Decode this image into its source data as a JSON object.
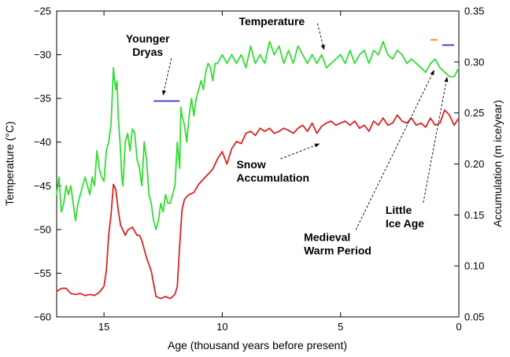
{
  "chart_data": {
    "type": "line",
    "title": "",
    "xlabel": "Age (thousand years before present)",
    "ylabel_left": "Temperature (°C)",
    "ylabel_right": "Accumulation (m ice/year)",
    "xlim": [
      17,
      0
    ],
    "ylim_left": [
      -60,
      -25
    ],
    "ylim_right": [
      0.05,
      0.35
    ],
    "x_ticks": [
      15,
      10,
      5,
      0
    ],
    "y_left_ticks": [
      -60,
      -55,
      -50,
      -45,
      -40,
      -35,
      -30,
      -25
    ],
    "y_right_ticks": [
      0.05,
      0.1,
      0.15,
      0.2,
      0.25,
      0.3,
      0.35
    ],
    "grid": false,
    "series": [
      {
        "name": "Temperature",
        "axis": "left",
        "color": "#33dd33",
        "x": [
          17.0,
          16.9,
          16.8,
          16.7,
          16.6,
          16.5,
          16.4,
          16.3,
          16.2,
          16.1,
          16.0,
          15.9,
          15.8,
          15.7,
          15.6,
          15.5,
          15.4,
          15.3,
          15.2,
          15.1,
          15.0,
          14.9,
          14.8,
          14.7,
          14.6,
          14.55,
          14.5,
          14.45,
          14.4,
          14.3,
          14.25,
          14.2,
          14.1,
          14.0,
          13.9,
          13.8,
          13.7,
          13.6,
          13.5,
          13.4,
          13.3,
          13.2,
          13.1,
          13.0,
          12.9,
          12.8,
          12.7,
          12.6,
          12.5,
          12.4,
          12.3,
          12.2,
          12.1,
          12.0,
          11.9,
          11.8,
          11.75,
          11.7,
          11.6,
          11.5,
          11.4,
          11.3,
          11.2,
          11.1,
          11.0,
          10.9,
          10.8,
          10.7,
          10.6,
          10.5,
          10.4,
          10.3,
          10.2,
          10.1,
          10.0,
          9.8,
          9.6,
          9.4,
          9.2,
          9.0,
          8.8,
          8.6,
          8.4,
          8.2,
          8.0,
          7.8,
          7.6,
          7.4,
          7.2,
          7.0,
          6.8,
          6.6,
          6.4,
          6.2,
          6.0,
          5.8,
          5.6,
          5.4,
          5.2,
          5.0,
          4.8,
          4.6,
          4.4,
          4.2,
          4.0,
          3.8,
          3.6,
          3.4,
          3.2,
          3.0,
          2.8,
          2.6,
          2.4,
          2.2,
          2.0,
          1.8,
          1.6,
          1.4,
          1.2,
          1.0,
          0.8,
          0.6,
          0.4,
          0.2,
          0.1,
          0.0
        ],
        "values": [
          -46,
          -44,
          -48,
          -47,
          -45,
          -46,
          -45,
          -47,
          -49,
          -47,
          -46,
          -45,
          -44,
          -45,
          -46,
          -44,
          -45,
          -41,
          -43,
          -44,
          -44.5,
          -41,
          -40,
          -38,
          -31.5,
          -33,
          -34,
          -33,
          -37,
          -41,
          -44,
          -45,
          -40,
          -39,
          -41,
          -38.5,
          -39,
          -42,
          -43,
          -45,
          -40,
          -42,
          -46,
          -47,
          -49,
          -50,
          -49,
          -47,
          -48,
          -46,
          -47,
          -47,
          -46,
          -45,
          -40,
          -43,
          -36,
          -37,
          -38,
          -40,
          -37,
          -35,
          -37,
          -35,
          -34,
          -33,
          -34,
          -32,
          -31,
          -31.5,
          -33,
          -31,
          -31,
          -30.5,
          -30,
          -31,
          -30,
          -31,
          -30,
          -31.5,
          -29,
          -31,
          -30,
          -31,
          -28.5,
          -30,
          -29,
          -31,
          -29.5,
          -31,
          -29,
          -30,
          -31,
          -30,
          -31,
          -30,
          -31.5,
          -31,
          -30.5,
          -30,
          -31,
          -29.5,
          -31,
          -30,
          -29.5,
          -31,
          -29.5,
          -30,
          -28.5,
          -30,
          -30.5,
          -29.5,
          -30,
          -31,
          -30.5,
          -31,
          -31.5,
          -32,
          -31,
          -30.5,
          -31.5,
          -32,
          -32.5,
          -32.5,
          -32,
          -31.5
        ]
      },
      {
        "name": "Snow Accumulation",
        "axis": "right",
        "color": "#dd2222",
        "x": [
          17.0,
          16.8,
          16.6,
          16.4,
          16.2,
          16.0,
          15.8,
          15.6,
          15.4,
          15.2,
          15.0,
          14.9,
          14.8,
          14.7,
          14.6,
          14.5,
          14.4,
          14.3,
          14.2,
          14.1,
          14.0,
          13.8,
          13.6,
          13.5,
          13.4,
          13.2,
          13.0,
          12.8,
          12.6,
          12.4,
          12.2,
          12.0,
          11.9,
          11.8,
          11.7,
          11.6,
          11.5,
          11.4,
          11.2,
          11.0,
          10.8,
          10.6,
          10.4,
          10.2,
          10.0,
          9.8,
          9.6,
          9.4,
          9.2,
          9.0,
          8.8,
          8.6,
          8.4,
          8.2,
          8.0,
          7.8,
          7.6,
          7.4,
          7.2,
          7.0,
          6.8,
          6.6,
          6.4,
          6.2,
          6.0,
          5.8,
          5.6,
          5.4,
          5.2,
          5.0,
          4.8,
          4.6,
          4.4,
          4.2,
          4.0,
          3.8,
          3.6,
          3.4,
          3.2,
          3.0,
          2.8,
          2.6,
          2.4,
          2.2,
          2.0,
          1.8,
          1.6,
          1.4,
          1.2,
          1.0,
          0.8,
          0.6,
          0.4,
          0.2,
          0.0
        ],
        "values": [
          0.075,
          0.078,
          0.078,
          0.073,
          0.072,
          0.073,
          0.071,
          0.072,
          0.071,
          0.074,
          0.08,
          0.095,
          0.13,
          0.15,
          0.18,
          0.175,
          0.155,
          0.14,
          0.135,
          0.13,
          0.135,
          0.138,
          0.13,
          0.13,
          0.125,
          0.108,
          0.095,
          0.07,
          0.068,
          0.07,
          0.068,
          0.072,
          0.08,
          0.12,
          0.155,
          0.165,
          0.168,
          0.17,
          0.172,
          0.18,
          0.185,
          0.19,
          0.195,
          0.205,
          0.212,
          0.2,
          0.215,
          0.222,
          0.22,
          0.23,
          0.232,
          0.228,
          0.235,
          0.232,
          0.235,
          0.23,
          0.232,
          0.235,
          0.233,
          0.23,
          0.235,
          0.238,
          0.232,
          0.24,
          0.23,
          0.237,
          0.24,
          0.242,
          0.238,
          0.24,
          0.242,
          0.238,
          0.242,
          0.235,
          0.238,
          0.232,
          0.242,
          0.238,
          0.245,
          0.238,
          0.24,
          0.248,
          0.242,
          0.24,
          0.245,
          0.238,
          0.24,
          0.236,
          0.245,
          0.238,
          0.24,
          0.253,
          0.248,
          0.238,
          0.245
        ]
      }
    ],
    "overlay_marks": [
      {
        "x0": 12.9,
        "x1": 11.8,
        "y": -35.3,
        "axis": "left",
        "color": "#3333cc"
      },
      {
        "x0": 1.2,
        "x1": 0.9,
        "y": -28.3,
        "axis": "left",
        "color": "#ff8800"
      },
      {
        "x0": 0.7,
        "x1": 0.2,
        "y": -28.9,
        "axis": "left",
        "color": "#3333cc"
      }
    ],
    "annotations": [
      {
        "lines": [
          "Younger",
          "Dryas"
        ],
        "x_text": 13.15,
        "y_text": -28.6,
        "anchor": "middle",
        "x_to": 12.5,
        "y_to": -34.6
      },
      {
        "lines": [
          "Temperature"
        ],
        "x_text": 9.3,
        "y_text": -26.6,
        "anchor": "start",
        "x_to": 5.7,
        "y_to": -29.4
      },
      {
        "lines": [
          "Snow",
          "Accumulation"
        ],
        "x_text": 9.4,
        "y_text": -43.0,
        "anchor": "start",
        "x_to": 5.9,
        "y_to": -40.2
      },
      {
        "lines": [
          "Little",
          "Ice Age"
        ],
        "x_text": 3.1,
        "y_text": -48.2,
        "anchor": "start",
        "x_to": 0.5,
        "y_to": -32.6
      },
      {
        "lines": [
          "Medieval",
          "Warm Period"
        ],
        "x_text": 6.55,
        "y_text": -51.3,
        "anchor": "start",
        "x_to": 1.05,
        "y_to": -31.8
      }
    ]
  }
}
